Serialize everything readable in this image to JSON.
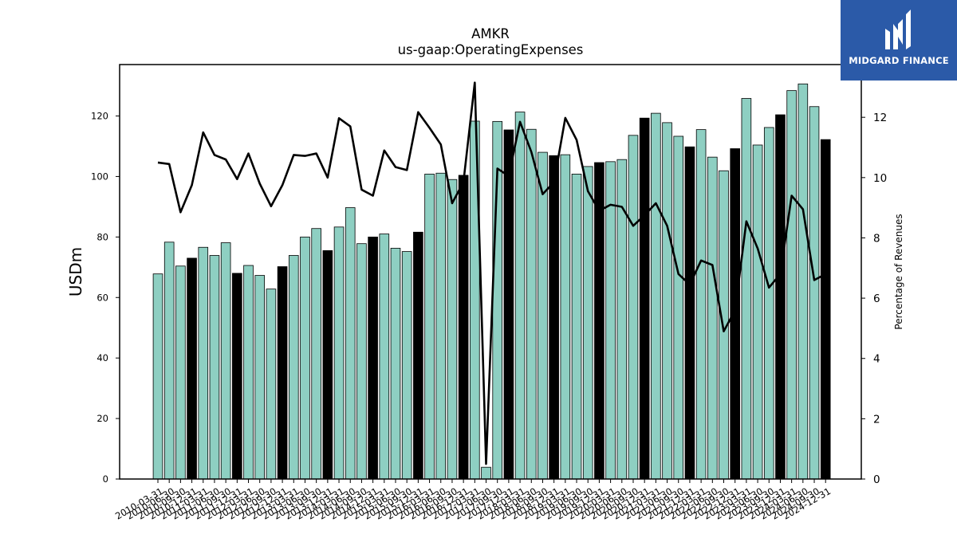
{
  "header": {
    "ticker": "AMKR",
    "metric": "us-gaap:OperatingExpenses"
  },
  "logo": {
    "text": "MIDGARD FINANCE",
    "bg_color": "#2b5aa8"
  },
  "chart_data": {
    "type": "bar",
    "ylabel": "USDm",
    "y2label": "Percentage of Revenues",
    "ylim": [
      0,
      137
    ],
    "y2lim": [
      0,
      13.75
    ],
    "yticks": [
      0,
      20,
      40,
      60,
      80,
      100,
      120
    ],
    "y2ticks": [
      0,
      2,
      4,
      6,
      8,
      10,
      12
    ],
    "bar_color": "#8ecfc2",
    "annual_bar_color": "#000000",
    "line_color": "#000000",
    "categories": [
      "2010-03-31",
      "2010-06-30",
      "2010-09-30",
      "2010-12-31",
      "2011-03-31",
      "2011-06-30",
      "2011-09-30",
      "2011-12-31",
      "2012-03-31",
      "2012-06-30",
      "2012-09-30",
      "2012-12-31",
      "2013-03-31",
      "2013-06-30",
      "2013-09-30",
      "2013-12-31",
      "2014-03-31",
      "2014-06-30",
      "2014-09-30",
      "2014-12-31",
      "2015-03-31",
      "2015-06-30",
      "2015-09-30",
      "2015-12-31",
      "2016-03-31",
      "2016-06-30",
      "2016-09-30",
      "2016-12-31",
      "2017-03-31",
      "2017-06-30",
      "2017-09-30",
      "2017-12-31",
      "2018-03-31",
      "2018-06-30",
      "2018-09-30",
      "2018-12-31",
      "2019-03-31",
      "2019-06-30",
      "2019-09-30",
      "2019-12-31",
      "2020-03-31",
      "2020-06-30",
      "2020-09-30",
      "2020-12-31",
      "2021-03-31",
      "2021-06-30",
      "2021-09-30",
      "2021-12-31",
      "2022-03-31",
      "2022-06-30",
      "2022-09-30",
      "2022-12-31",
      "2023-03-31",
      "2023-06-30",
      "2023-09-30",
      "2023-12-31",
      "2024-03-31",
      "2024-06-30",
      "2024-09-30",
      "2024-12-31"
    ],
    "annual": [
      false,
      false,
      false,
      true,
      false,
      false,
      false,
      true,
      false,
      false,
      false,
      true,
      false,
      false,
      false,
      true,
      false,
      false,
      false,
      true,
      false,
      false,
      false,
      true,
      false,
      false,
      false,
      true,
      false,
      false,
      false,
      true,
      false,
      false,
      false,
      true,
      false,
      false,
      false,
      true,
      false,
      false,
      false,
      true,
      false,
      false,
      false,
      true,
      false,
      false,
      false,
      true,
      false,
      false,
      false,
      true,
      false,
      false,
      false,
      true
    ],
    "series": [
      {
        "values": [
          67.8,
          78.3,
          70.4,
          73.0,
          76.6,
          73.9,
          78.1,
          68.0,
          70.6,
          67.3,
          62.8,
          70.2,
          73.9,
          80.0,
          82.8,
          75.5,
          83.3,
          89.7,
          77.8,
          80.0,
          81.0,
          76.3,
          75.2,
          81.6,
          100.8,
          101.1,
          99.0,
          100.4,
          118.3,
          3.9,
          118.2,
          115.4,
          121.3,
          115.6,
          108.0,
          106.9,
          107.2,
          100.8,
          103.3,
          104.6,
          104.9,
          105.6,
          113.6,
          119.3,
          120.9,
          117.8,
          113.3,
          109.8,
          115.5,
          106.4,
          101.9,
          109.2,
          125.8,
          110.4,
          116.2,
          120.4,
          128.4,
          130.6,
          123.1,
          112.2
        ]
      },
      {
        "values": [
          10.5,
          10.45,
          8.85,
          9.75,
          11.5,
          10.75,
          10.6,
          9.95,
          10.8,
          9.8,
          9.05,
          9.75,
          10.75,
          10.72,
          10.8,
          10.0,
          11.97,
          11.7,
          9.6,
          9.4,
          10.9,
          10.35,
          10.25,
          12.17,
          11.65,
          11.1,
          9.15,
          9.85,
          13.15,
          0.5,
          10.3,
          10.05,
          11.85,
          10.85,
          9.45,
          9.85,
          11.98,
          11.25,
          9.55,
          8.9,
          9.1,
          9.03,
          8.4,
          8.75,
          9.15,
          8.4,
          6.8,
          6.45,
          7.25,
          7.1,
          4.9,
          5.6,
          8.55,
          7.65,
          6.35,
          6.8,
          9.4,
          8.95,
          6.6,
          6.8
        ]
      }
    ]
  }
}
